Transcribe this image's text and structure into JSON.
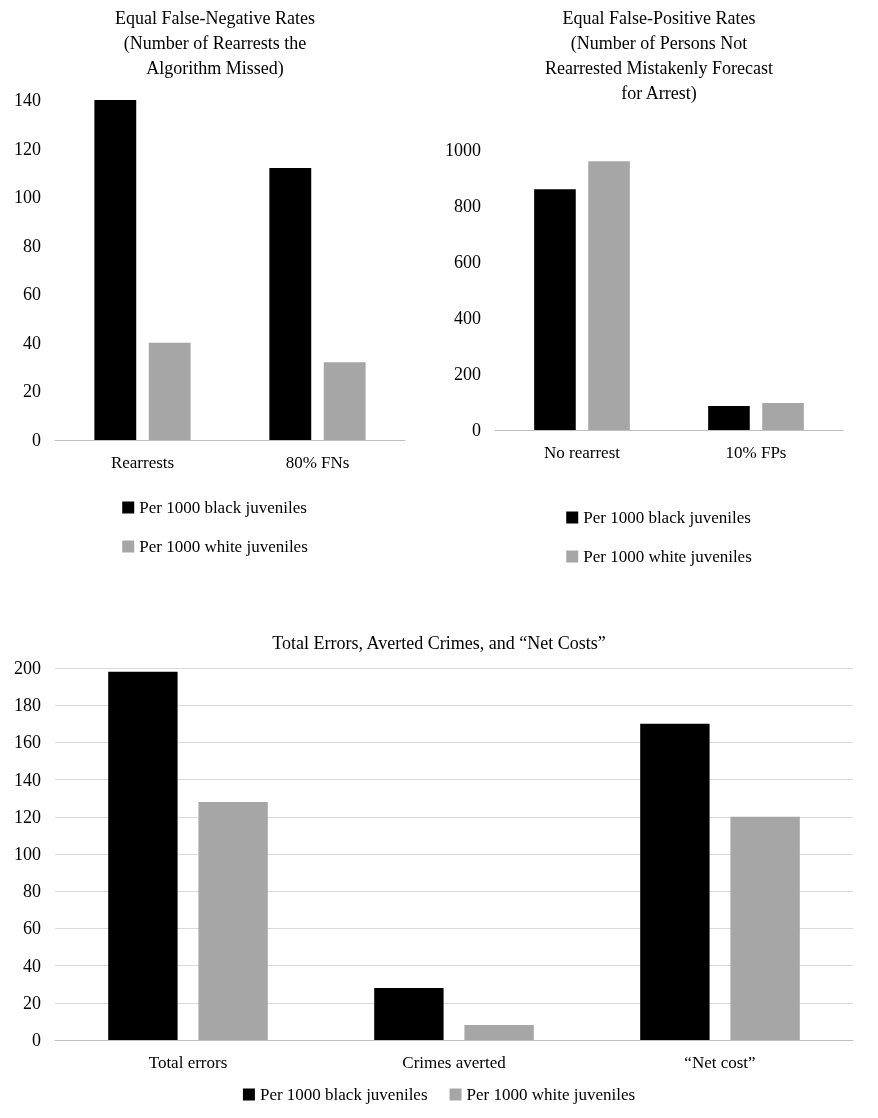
{
  "chart_data": [
    {
      "type": "bar",
      "title": "Equal False-Negative Rates\n(Number of Rearrests the\nAlgorithm Missed)",
      "categories": [
        "Rearrests",
        "80% FNs"
      ],
      "series": [
        {
          "name": "Per 1000 black juveniles",
          "color": "#000000",
          "values": [
            140,
            112
          ]
        },
        {
          "name": "Per 1000 white juveniles",
          "color": "#a6a6a6",
          "values": [
            40,
            32
          ]
        }
      ],
      "ylim": [
        0,
        140
      ],
      "yticks": [
        0,
        20,
        40,
        60,
        80,
        100,
        120,
        140
      ],
      "grid": false,
      "legend": "bottom"
    },
    {
      "type": "bar",
      "title": "Equal False-Positive Rates\n(Number of Persons Not\nRearrested Mistakenly Forecast\nfor Arrest)",
      "categories": [
        "No rearrest",
        "10% FPs"
      ],
      "series": [
        {
          "name": "Per 1000 black juveniles",
          "color": "#000000",
          "values": [
            860,
            86
          ]
        },
        {
          "name": "Per 1000 white juveniles",
          "color": "#a6a6a6",
          "values": [
            960,
            96
          ]
        }
      ],
      "ylim": [
        0,
        1000
      ],
      "yticks": [
        0,
        200,
        400,
        600,
        800,
        1000
      ],
      "grid": false,
      "legend": "bottom"
    },
    {
      "type": "bar",
      "title": "Total Errors, Averted Crimes, and “Net Costs”",
      "categories": [
        "Total errors",
        "Crimes averted",
        "“Net cost”"
      ],
      "series": [
        {
          "name": "Per 1000 black juveniles",
          "color": "#000000",
          "values": [
            198,
            28,
            170
          ]
        },
        {
          "name": "Per 1000 white juveniles",
          "color": "#a6a6a6",
          "values": [
            128,
            8,
            120
          ]
        }
      ],
      "ylim": [
        0,
        200
      ],
      "yticks": [
        0,
        20,
        40,
        60,
        80,
        100,
        120,
        140,
        160,
        180,
        200
      ],
      "grid": "y",
      "legend": "bottom"
    }
  ]
}
